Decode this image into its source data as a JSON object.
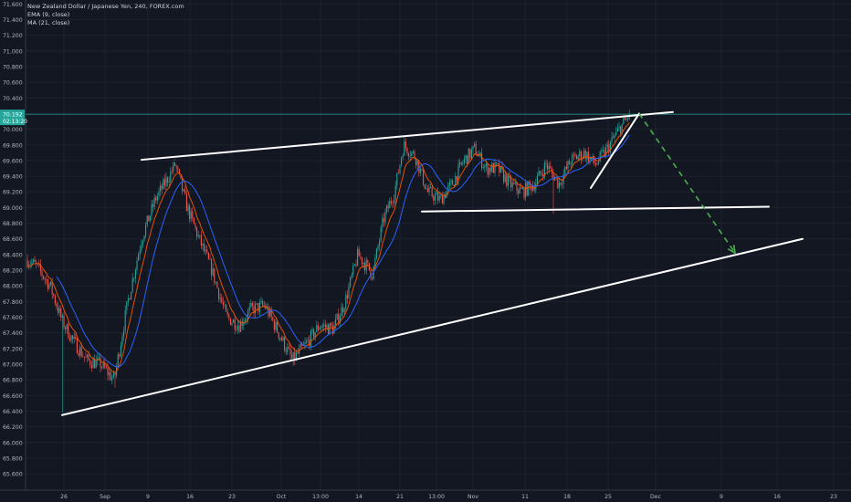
{
  "legend": {
    "symbol_line": "New Zealand Dollar / Japanese Yen, 240, FOREX.com",
    "ema_line": "EMA (9, close)",
    "ma_line": "MA (21, close)"
  },
  "price_badge": {
    "price": "70.192",
    "countdown": "02:13:20",
    "color": "#26a69a"
  },
  "colors": {
    "background": "#131722",
    "grid": "#1e222d",
    "axis_text": "#b2b5be",
    "up": "#26a69a",
    "down": "#ef5350",
    "ema": "#e65100",
    "ma": "#2962ff",
    "drawing": "#ffffff",
    "projection": "#4caf50"
  },
  "chart_data": {
    "type": "candlestick",
    "title": "New Zealand Dollar / Japanese Yen, 240, FOREX.com",
    "xlabel": "",
    "ylabel": "",
    "ylim": [
      65.4,
      71.7
    ],
    "y_ticks": [
      65.6,
      65.8,
      66.0,
      66.2,
      66.4,
      66.6,
      66.8,
      67.0,
      67.2,
      67.4,
      67.6,
      67.8,
      68.0,
      68.2,
      68.4,
      68.6,
      68.8,
      69.0,
      69.2,
      69.4,
      69.6,
      69.8,
      70.0,
      70.4,
      70.6,
      70.8,
      71.0,
      71.2,
      71.4,
      71.6
    ],
    "x_ticks": [
      {
        "label": "26",
        "x": 70
      },
      {
        "label": "Sep",
        "x": 115
      },
      {
        "label": "9",
        "x": 162
      },
      {
        "label": "16",
        "x": 208
      },
      {
        "label": "23",
        "x": 254
      },
      {
        "label": "Oct",
        "x": 308
      },
      {
        "label": "13:00",
        "x": 351
      },
      {
        "label": "14",
        "x": 393
      },
      {
        "label": "21",
        "x": 438
      },
      {
        "label": "13:00",
        "x": 478
      },
      {
        "label": "Nov",
        "x": 518
      },
      {
        "label": "11",
        "x": 575
      },
      {
        "label": "18",
        "x": 621
      },
      {
        "label": "25",
        "x": 666
      },
      {
        "label": "Dec",
        "x": 718
      },
      {
        "label": "9",
        "x": 790
      },
      {
        "label": "16",
        "x": 851
      },
      {
        "label": "23",
        "x": 913
      }
    ],
    "last_price": 70.192,
    "price_path": [
      [
        28,
        68.35
      ],
      [
        40,
        68.25
      ],
      [
        55,
        68.0
      ],
      [
        68,
        67.55
      ],
      [
        80,
        67.3
      ],
      [
        95,
        67.05
      ],
      [
        110,
        67.0
      ],
      [
        125,
        66.8
      ],
      [
        140,
        67.8
      ],
      [
        155,
        68.6
      ],
      [
        170,
        69.1
      ],
      [
        185,
        69.4
      ],
      [
        192,
        69.55
      ],
      [
        205,
        69.0
      ],
      [
        218,
        68.6
      ],
      [
        232,
        68.2
      ],
      [
        248,
        67.6
      ],
      [
        262,
        67.5
      ],
      [
        275,
        67.7
      ],
      [
        290,
        67.75
      ],
      [
        305,
        67.4
      ],
      [
        320,
        67.05
      ],
      [
        335,
        67.25
      ],
      [
        350,
        67.5
      ],
      [
        365,
        67.45
      ],
      [
        378,
        67.8
      ],
      [
        392,
        68.4
      ],
      [
        408,
        68.15
      ],
      [
        420,
        68.85
      ],
      [
        432,
        69.2
      ],
      [
        442,
        69.8
      ],
      [
        455,
        69.65
      ],
      [
        468,
        69.2
      ],
      [
        482,
        69.1
      ],
      [
        495,
        69.3
      ],
      [
        508,
        69.6
      ],
      [
        520,
        69.75
      ],
      [
        532,
        69.5
      ],
      [
        545,
        69.5
      ],
      [
        558,
        69.3
      ],
      [
        572,
        69.2
      ],
      [
        585,
        69.3
      ],
      [
        598,
        69.55
      ],
      [
        612,
        69.3
      ],
      [
        625,
        69.6
      ],
      [
        640,
        69.7
      ],
      [
        652,
        69.55
      ],
      [
        665,
        69.75
      ],
      [
        678,
        70.0
      ],
      [
        690,
        70.19
      ]
    ],
    "series": [
      {
        "name": "EMA (9, close)"
      },
      {
        "name": "MA (21, close)"
      }
    ],
    "drawings": {
      "upper_trendline": [
        [
          155,
          69.61
        ],
        [
          737,
          70.22
        ]
      ],
      "lower_trendline": [
        [
          68,
          66.35
        ],
        [
          879,
          68.6
        ]
      ],
      "range_support": [
        [
          462,
          68.95
        ],
        [
          842,
          69.01
        ]
      ],
      "wedge_line": [
        [
          647,
          69.25
        ],
        [
          700,
          70.2
        ]
      ],
      "projection_arrow": [
        [
          700,
          70.2
        ],
        [
          805,
          68.42
        ]
      ]
    }
  }
}
